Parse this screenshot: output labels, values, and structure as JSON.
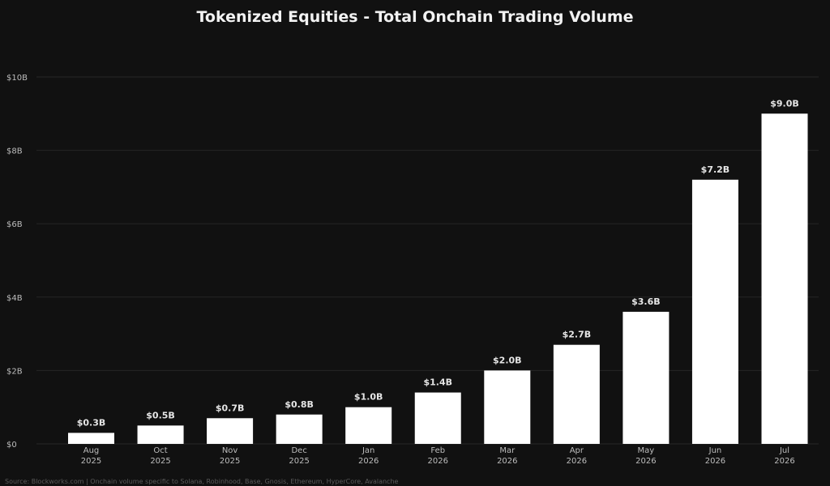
{
  "chart_data": {
    "type": "bar",
    "title": "Tokenized Equities - Total Onchain Trading Volume",
    "xlabel": "",
    "ylabel": "",
    "categories": [
      [
        "Aug",
        "2025"
      ],
      [
        "Oct",
        "2025"
      ],
      [
        "Nov",
        "2025"
      ],
      [
        "Dec",
        "2025"
      ],
      [
        "Jan",
        "2026"
      ],
      [
        "Feb",
        "2026"
      ],
      [
        "Mar",
        "2026"
      ],
      [
        "Apr",
        "2026"
      ],
      [
        "May",
        "2026"
      ],
      [
        "Jun",
        "2026"
      ],
      [
        "Jul",
        "2026"
      ]
    ],
    "values": [
      0.3,
      0.5,
      0.7,
      0.8,
      1.0,
      1.4,
      2.0,
      2.7,
      3.6,
      7.2,
      9.0
    ],
    "data_labels": [
      "$0.3B",
      "$0.5B",
      "$0.7B",
      "$0.8B",
      "$1.0B",
      "$1.4B",
      "$2.0B",
      "$2.7B",
      "$3.6B",
      "$7.2B",
      "$9.0B"
    ],
    "ylim": [
      0,
      10
    ],
    "yticks": [
      0,
      2,
      4,
      6,
      8,
      10
    ],
    "ytick_labels": [
      "$0",
      "$2B",
      "$4B",
      "$6B",
      "$8B",
      "$10B"
    ],
    "grid": true,
    "legend": "none",
    "colors": {
      "background": "#111111",
      "bar": "#ffffff",
      "grid": "#262626",
      "text": "#e6e6e6",
      "tick_text": "#bdbdbd"
    },
    "source": "Source: Blockworks.com | Onchain volume specific to Solana, Robinhood, Base, Gnosis, Ethereum, HyperCore, Avalanche"
  }
}
